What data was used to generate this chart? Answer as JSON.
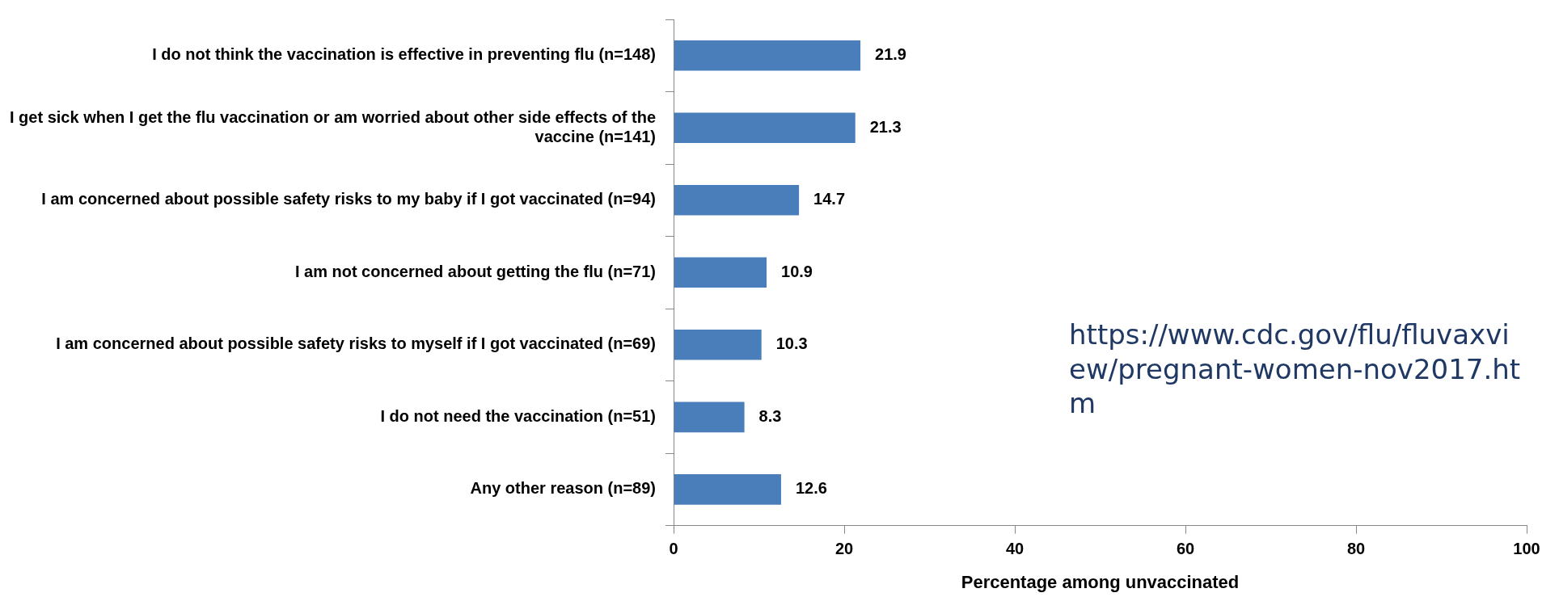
{
  "chart_data": {
    "type": "bar",
    "orientation": "horizontal",
    "xlabel": "Percentage among unvaccinated",
    "categories": [
      "I do not think the vaccination is effective in preventing flu (n=148)",
      "I get sick when I get the flu vaccination or am worried about other side effects of the vaccine (n=141)",
      "I am concerned about possible safety risks to my baby if I got vaccinated (n=94)",
      "I am not concerned about getting the flu (n=71)",
      "I am concerned about possible safety risks to myself if I got vaccinated (n=69)",
      "I do not need the vaccination (n=51)",
      "Any other reason (n=89)"
    ],
    "values": [
      21.9,
      21.3,
      14.7,
      10.9,
      10.3,
      8.3,
      12.6
    ],
    "color": "#4a7ebb",
    "data_labels": true,
    "legend": false,
    "xlim": [
      0,
      100
    ],
    "xticks": [
      0,
      20,
      40,
      60,
      80,
      100
    ],
    "annotations": [
      "https://www.cdc.gov/flu/fluvaxview/pregnant-women-nov2017.htm"
    ]
  }
}
